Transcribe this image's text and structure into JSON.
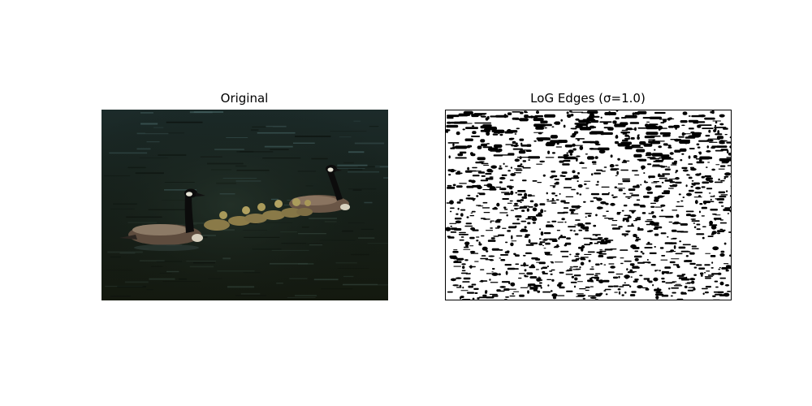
{
  "panels": [
    {
      "title": "Original",
      "content": "photo"
    },
    {
      "title": "LoG Edges (σ=1.0)",
      "content": "edge-map"
    }
  ],
  "colors": {
    "background": "#ffffff",
    "water_dark": "#1a2418",
    "edge_black": "#000000",
    "edge_white": "#ffffff"
  }
}
